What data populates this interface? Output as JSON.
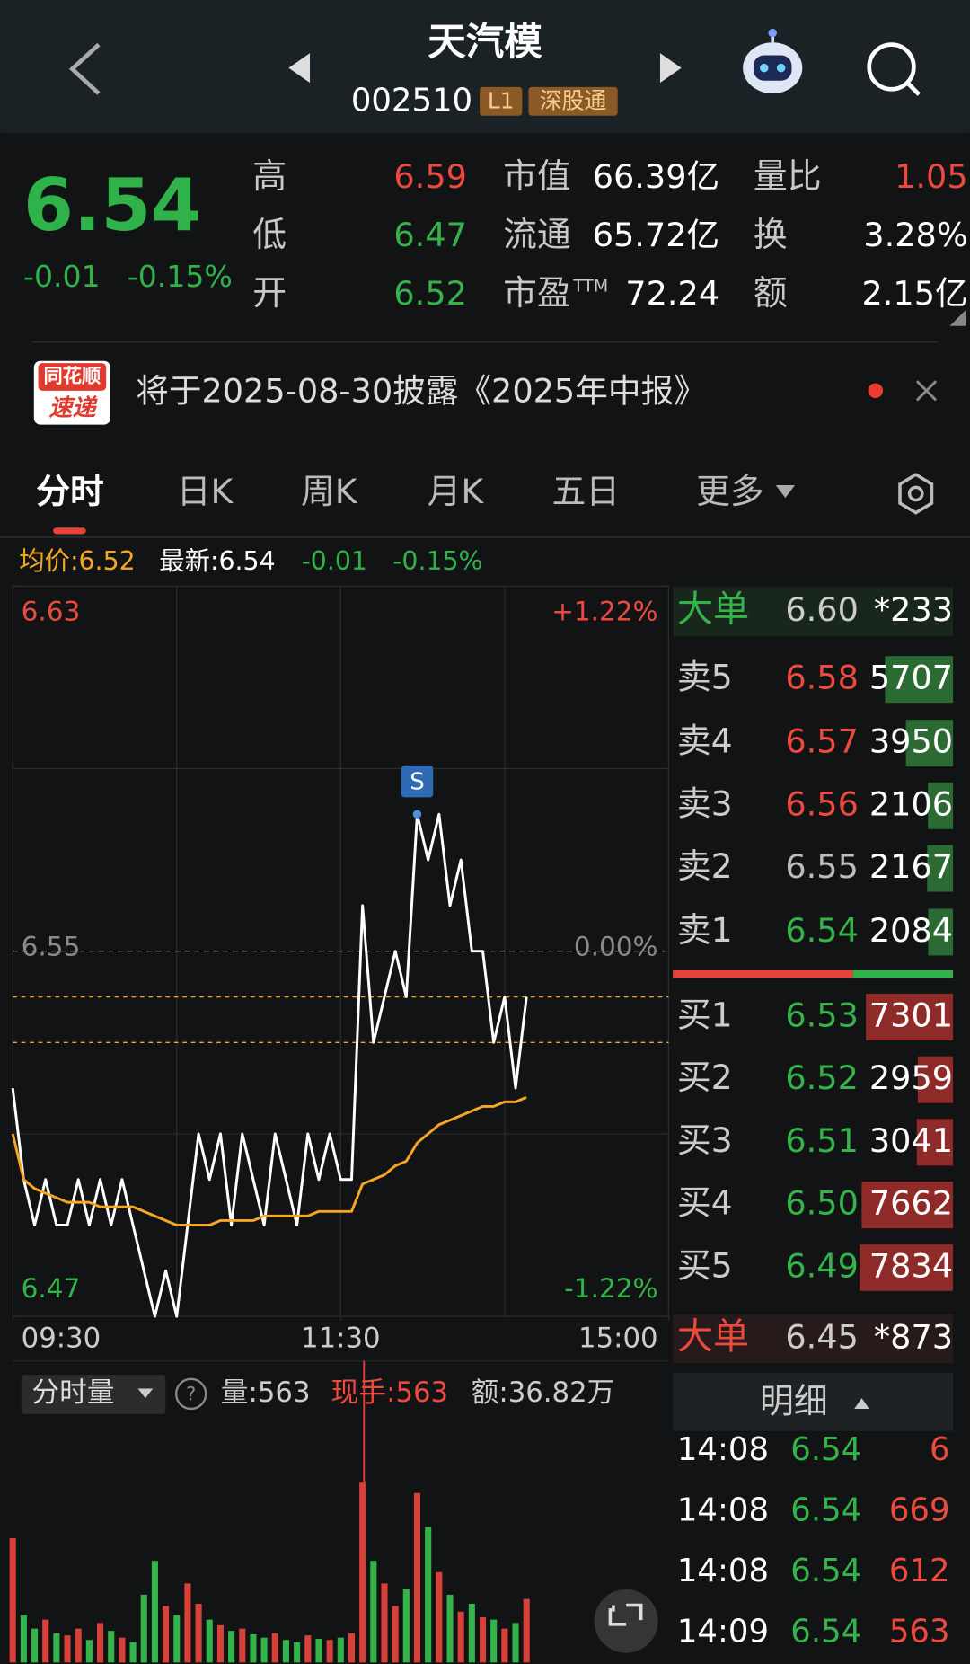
{
  "header": {
    "title": "天汽模",
    "code": "002510",
    "tags": [
      "L1",
      "深股通"
    ]
  },
  "quote": {
    "price": "6.54",
    "change": "-0.01",
    "change_pct": "-0.15%",
    "stats": [
      {
        "label": "高",
        "value": "6.59",
        "color": "#ec4a3f"
      },
      {
        "label": "低",
        "value": "6.47",
        "color": "#34b34a"
      },
      {
        "label": "开",
        "value": "6.52",
        "color": "#34b34a"
      },
      {
        "label": "市值",
        "value": "66.39亿",
        "color": "#ffffff"
      },
      {
        "label": "流通",
        "value": "65.72亿",
        "color": "#ffffff"
      },
      {
        "label": "市盈",
        "label_sup": "TTM",
        "value": "72.24",
        "color": "#ffffff"
      },
      {
        "label": "量比",
        "value": "1.05",
        "color": "#ec4a3f"
      },
      {
        "label": "换",
        "value": "3.28%",
        "color": "#ffffff"
      },
      {
        "label": "额",
        "value": "2.15亿",
        "color": "#ffffff"
      }
    ]
  },
  "notice": {
    "logo": [
      "同花顺",
      "速递"
    ],
    "text": "将于2025-08-30披露《2025年中报》"
  },
  "tabs": [
    "分时",
    "日K",
    "周K",
    "月K",
    "五日",
    "更多"
  ],
  "chart_data": [
    {
      "type": "line",
      "legend": [
        "均价:6.52",
        "最新:6.54",
        "-0.01",
        "-0.15%"
      ],
      "xlim": [
        0,
        240
      ],
      "xticks": [
        {
          "value": 0,
          "label": "09:30"
        },
        {
          "value": 120,
          "label": "11:30"
        },
        {
          "value": 240,
          "label": "15:00"
        }
      ],
      "ylim": [
        6.47,
        6.63
      ],
      "yticks": [
        6.47,
        6.55,
        6.63
      ],
      "tick_colors": [
        "#34b34a",
        "#8a8a8a",
        "#ec4a3f"
      ],
      "y2lim": [
        -1.22,
        1.22
      ],
      "y2ticks": [
        {
          "value": -1.22,
          "label": "-1.22%"
        },
        {
          "value": 0,
          "label": "0.00%"
        },
        {
          "value": 1.22,
          "label": "+1.22%"
        }
      ],
      "grid_x": [
        60,
        120,
        180
      ],
      "grid_y": [
        6.51,
        6.59
      ],
      "hlines": [
        6.54,
        6.53
      ],
      "x": [
        0,
        4,
        8,
        12,
        16,
        20,
        24,
        28,
        32,
        36,
        40,
        44,
        48,
        52,
        56,
        60,
        64,
        68,
        72,
        76,
        80,
        84,
        88,
        92,
        96,
        100,
        104,
        108,
        112,
        116,
        120,
        124,
        128,
        132,
        136,
        140,
        144,
        148,
        152,
        156,
        160,
        164,
        168,
        172,
        176,
        180,
        184,
        188
      ],
      "series": [
        {
          "color": "#ffffff",
          "values": [
            6.52,
            6.5,
            6.49,
            6.5,
            6.49,
            6.49,
            6.5,
            6.49,
            6.5,
            6.49,
            6.5,
            6.49,
            6.48,
            6.47,
            6.48,
            6.47,
            6.49,
            6.51,
            6.5,
            6.51,
            6.49,
            6.51,
            6.5,
            6.49,
            6.51,
            6.5,
            6.49,
            6.51,
            6.5,
            6.51,
            6.5,
            6.5,
            6.56,
            6.53,
            6.54,
            6.55,
            6.54,
            6.58,
            6.57,
            6.58,
            6.56,
            6.57,
            6.55,
            6.55,
            6.53,
            6.54,
            6.52,
            6.54
          ]
        },
        {
          "color": "#f5a623",
          "values": [
            6.51,
            6.5,
            6.498,
            6.497,
            6.496,
            6.495,
            6.495,
            6.495,
            6.494,
            6.494,
            6.494,
            6.494,
            6.493,
            6.492,
            6.491,
            6.49,
            6.49,
            6.49,
            6.49,
            6.491,
            6.491,
            6.491,
            6.491,
            6.492,
            6.492,
            6.492,
            6.492,
            6.492,
            6.493,
            6.493,
            6.493,
            6.493,
            6.499,
            6.5,
            6.501,
            6.503,
            6.504,
            6.508,
            6.51,
            6.512,
            6.513,
            6.514,
            6.515,
            6.516,
            6.516,
            6.517,
            6.517,
            6.518
          ]
        }
      ],
      "annotation": {
        "text": "S",
        "x": 148,
        "y": 6.58
      }
    },
    {
      "type": "bar",
      "title": "分时量",
      "stats": [
        "量:563",
        "现手:563",
        "额:36.82万"
      ],
      "stat_colors": [
        "#cccccc",
        "#ec4a3f",
        "#cccccc"
      ],
      "xlim": [
        0,
        240
      ],
      "ylim": [
        0,
        2500
      ],
      "up_color": "#d8413a",
      "down_color": "#34b34a",
      "x": [
        0,
        4,
        8,
        12,
        16,
        20,
        24,
        28,
        32,
        36,
        40,
        44,
        48,
        52,
        56,
        60,
        64,
        68,
        72,
        76,
        80,
        84,
        88,
        92,
        96,
        100,
        104,
        108,
        112,
        116,
        120,
        124,
        128,
        132,
        136,
        140,
        144,
        148,
        152,
        156,
        160,
        164,
        168,
        172,
        176,
        180,
        184,
        188
      ],
      "values": [
        1100,
        420,
        300,
        380,
        260,
        240,
        300,
        200,
        350,
        280,
        220,
        180,
        600,
        900,
        500,
        420,
        700,
        520,
        380,
        330,
        280,
        300,
        250,
        220,
        260,
        200,
        180,
        240,
        210,
        200,
        220,
        260,
        1600,
        900,
        700,
        500,
        650,
        1500,
        1200,
        800,
        600,
        450,
        520,
        400,
        380,
        300,
        350,
        563
      ]
    }
  ],
  "order_book": {
    "top_big": {
      "label": "大单",
      "price": "6.60",
      "volume": "*233"
    },
    "asks": [
      {
        "label": "卖5",
        "price": "6.58",
        "volume": 5707,
        "color": "#ec4a3f"
      },
      {
        "label": "卖4",
        "price": "6.57",
        "volume": 3950,
        "color": "#ec4a3f"
      },
      {
        "label": "卖3",
        "price": "6.56",
        "volume": 2106,
        "color": "#ec4a3f"
      },
      {
        "label": "卖2",
        "price": "6.55",
        "volume": 2167,
        "color": "#bbbbbb"
      },
      {
        "label": "卖1",
        "price": "6.54",
        "volume": 2084,
        "color": "#34b34a"
      }
    ],
    "bids": [
      {
        "label": "买1",
        "price": "6.53",
        "volume": 7301,
        "color": "#34b34a"
      },
      {
        "label": "买2",
        "price": "6.52",
        "volume": 2959,
        "color": "#34b34a"
      },
      {
        "label": "买3",
        "price": "6.51",
        "volume": 3041,
        "color": "#34b34a"
      },
      {
        "label": "买4",
        "price": "6.50",
        "volume": 7662,
        "color": "#34b34a"
      },
      {
        "label": "买5",
        "price": "6.49",
        "volume": 7834,
        "color": "#34b34a"
      }
    ],
    "bottom_big": {
      "label": "大单",
      "price": "6.45",
      "volume": "*873"
    }
  },
  "trades": {
    "title": "明细",
    "rows": [
      [
        "14:08",
        "6.54",
        6
      ],
      [
        "14:08",
        "6.54",
        669
      ],
      [
        "14:08",
        "6.54",
        612
      ],
      [
        "14:09",
        "6.54",
        563
      ]
    ]
  }
}
